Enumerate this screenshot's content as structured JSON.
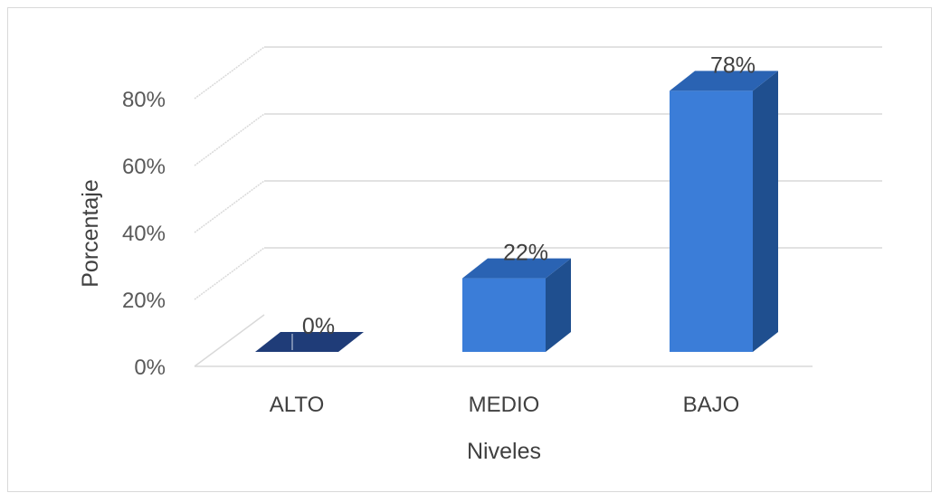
{
  "chart_data": {
    "type": "bar",
    "title": "",
    "categories": [
      "ALTO",
      "MEDIO",
      "BAJO"
    ],
    "series": [
      {
        "values": [
          0,
          22,
          78
        ],
        "data_labels": [
          "0%",
          "22%",
          "78%"
        ]
      }
    ],
    "xlabel": "Niveles",
    "ylabel": "Porcentaje",
    "ylim": [
      0,
      80
    ],
    "yticks": [
      0,
      20,
      40,
      60,
      80
    ],
    "ytick_labels": [
      "0%",
      "20%",
      "40%",
      "60%",
      "80%"
    ],
    "grid": true,
    "legend": "none",
    "style": "3d-column",
    "colors": {
      "bar_front": "#3b7dd8",
      "bar_side": "#1f4f8f",
      "bar_top": "#2a63b3",
      "grid": "#d9d9d9",
      "floor_bar": "#1f3c78"
    }
  }
}
